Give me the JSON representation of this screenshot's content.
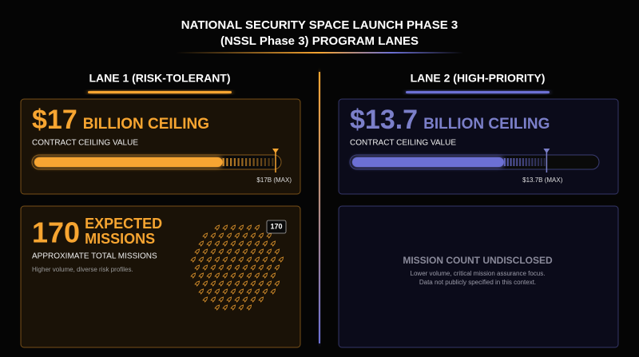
{
  "header": {
    "title_lines": [
      "NATIONAL SECURITY SPACE LAUNCH PHASE 3",
      "(NSSL Phase 3) PROGRAM LANES"
    ]
  },
  "lanes": [
    {
      "heading": "LANE 1 (RISK-TOLERANT)",
      "color": "#f7a531",
      "ceiling": {
        "value": 17,
        "label": "$17",
        "unit": "BILLION CEILING",
        "caption": "CONTRACT CEILING VALUE",
        "max_label": "$17B (MAX)"
      },
      "missions": {
        "value": 170,
        "unit_lines": [
          "EXPECTED",
          "MISSIONS"
        ],
        "caption": "APPROXIMATE TOTAL MISSIONS",
        "note": "Higher volume, diverse risk profiles."
      }
    },
    {
      "heading": "LANE 2 (HIGH-PRIORITY)",
      "color": "#6c70d4",
      "ceiling": {
        "value": 13.7,
        "label": "$13.7",
        "unit": "BILLION CEILING",
        "caption": "CONTRACT CEILING VALUE",
        "max_label": "$13.7B (MAX)"
      },
      "missions": {
        "status": "MISSION COUNT UNDISCLOSED",
        "note_lines": [
          "Lower volume, critical mission assurance focus.",
          "Data not publicly specified in this context."
        ]
      }
    }
  ]
}
